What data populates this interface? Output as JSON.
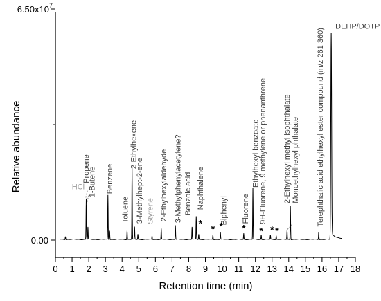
{
  "chart_data": {
    "type": "line",
    "title": "",
    "xlabel": "Retention time (min)",
    "ylabel": "Relative abundance",
    "xlim": [
      0,
      18
    ],
    "ylim": [
      0,
      65000000
    ],
    "xticks": [
      0,
      1,
      2,
      3,
      4,
      5,
      6,
      7,
      8,
      9,
      10,
      11,
      12,
      13,
      14,
      15,
      16,
      17,
      18
    ],
    "y_tick_labels": [
      {
        "value": 65000000,
        "label": "6.50x10",
        "exponent": "7"
      },
      {
        "value": 0,
        "label": "0.00",
        "exponent": ""
      }
    ],
    "y_minor_ticks": [
      32500000
    ],
    "grid": false,
    "baseline_level": 200000,
    "peaks": [
      {
        "rt": 0.6,
        "height": 900000
      },
      {
        "rt": 1.85,
        "height": 11500000
      },
      {
        "rt": 1.95,
        "height": 3500000
      },
      {
        "rt": 3.15,
        "height": 12500000
      },
      {
        "rt": 3.25,
        "height": 2500000
      },
      {
        "rt": 4.3,
        "height": 2500000
      },
      {
        "rt": 4.6,
        "height": 20500000
      },
      {
        "rt": 4.75,
        "height": 3500000
      },
      {
        "rt": 4.95,
        "height": 1500000
      },
      {
        "rt": 5.8,
        "height": 1000000
      },
      {
        "rt": 6.35,
        "height": 3000000
      },
      {
        "rt": 7.2,
        "height": 4000000
      },
      {
        "rt": 8.2,
        "height": 3500000
      },
      {
        "rt": 8.45,
        "height": 6500000
      },
      {
        "rt": 8.6,
        "height": 1500000
      },
      {
        "rt": 9.45,
        "height": 1300000
      },
      {
        "rt": 9.9,
        "height": 2000000
      },
      {
        "rt": 11.3,
        "height": 1700000
      },
      {
        "rt": 11.85,
        "height": 14500000
      },
      {
        "rt": 12.35,
        "height": 1300000
      },
      {
        "rt": 12.9,
        "height": 1200000
      },
      {
        "rt": 13.25,
        "height": 1100000
      },
      {
        "rt": 13.9,
        "height": 2500000
      },
      {
        "rt": 14.1,
        "height": 9500000
      },
      {
        "rt": 15.8,
        "height": 2200000
      },
      {
        "rt": 16.55,
        "height": 58000000
      }
    ],
    "annotations": [
      {
        "text": "HCl",
        "x": 1.75,
        "y": 14300000,
        "vertical": false,
        "gray": true
      },
      {
        "text": "Propene",
        "x": 2.0,
        "y": 16000000,
        "vertical": true,
        "gray": false
      },
      {
        "text": "1-Butene",
        "x": 2.35,
        "y": 12000000,
        "vertical": true,
        "gray": false
      },
      {
        "text": "Benzene",
        "x": 3.4,
        "y": 13000000,
        "vertical": true,
        "gray": false
      },
      {
        "text": "Toluene",
        "x": 4.35,
        "y": 4800000,
        "vertical": true,
        "gray": false
      },
      {
        "text": "2-Ethylhexene",
        "x": 4.85,
        "y": 20000000,
        "vertical": true,
        "gray": false
      },
      {
        "text": "3-Methylhept-2-ene",
        "x": 5.2,
        "y": 4600000,
        "vertical": true,
        "gray": false
      },
      {
        "text": "Styrene",
        "x": 5.85,
        "y": 4500000,
        "vertical": true,
        "gray": true
      },
      {
        "text": "2-Ethylhexylaldehyde",
        "x": 6.65,
        "y": 5200000,
        "vertical": true,
        "gray": false
      },
      {
        "text": "3-Methylphenylacetylene?",
        "x": 7.5,
        "y": 4800000,
        "vertical": true,
        "gray": false
      },
      {
        "text": "Benzoic acid",
        "x": 8.1,
        "y": 7000000,
        "vertical": true,
        "gray": false
      },
      {
        "text": "Naphthalene",
        "x": 8.85,
        "y": 8500000,
        "vertical": true,
        "gray": false
      },
      {
        "text": "Biphenyl",
        "x": 10.25,
        "y": 4200000,
        "vertical": true,
        "gray": false
      },
      {
        "text": "Fluorene",
        "x": 11.55,
        "y": 4600000,
        "vertical": true,
        "gray": false
      },
      {
        "text": "Ethylhexyl benzoate",
        "x": 12.15,
        "y": 14800000,
        "vertical": true,
        "gray": false
      },
      {
        "text": "9H-Fluorene, 9 methylene or phenanthrene",
        "x": 12.6,
        "y": 4500000,
        "vertical": true,
        "gray": false
      },
      {
        "text": "2-Ethylhexyl methyl isophthalate",
        "x": 14.05,
        "y": 10300000,
        "vertical": true,
        "gray": false
      },
      {
        "text": "Monoethylhexyl phthalate",
        "x": 14.55,
        "y": 10400000,
        "vertical": true,
        "gray": false
      },
      {
        "text": "Terephthalic acid ethylhexyl ester compound (m/z 261 360)",
        "x": 16.05,
        "y": 3800000,
        "vertical": true,
        "gray": false
      },
      {
        "text": "DEHP/DOTP",
        "x": 16.8,
        "y": 59500000,
        "vertical": false,
        "gray": false
      }
    ],
    "markers": [
      {
        "symbol": "*",
        "x": 8.7,
        "y": 3800000
      },
      {
        "symbol": "*",
        "x": 9.45,
        "y": 2200000
      },
      {
        "symbol": "*",
        "x": 9.95,
        "y": 3000000
      },
      {
        "symbol": "*",
        "x": 11.3,
        "y": 2400000
      },
      {
        "symbol": "*",
        "x": 12.35,
        "y": 1700000
      },
      {
        "symbol": "*",
        "x": 13.0,
        "y": 2000000
      },
      {
        "symbol": "*",
        "x": 13.3,
        "y": 1700000
      }
    ],
    "leader_lines": [
      {
        "x1": 1.82,
        "y1": 12000000,
        "x2": 1.93,
        "y2": 14000000
      },
      {
        "x1": 1.88,
        "y1": 10000000,
        "x2": 1.98,
        "y2": 12500000
      },
      {
        "x1": 13.92,
        "y1": 3000000,
        "x2": 14.2,
        "y2": 4400000
      }
    ]
  }
}
